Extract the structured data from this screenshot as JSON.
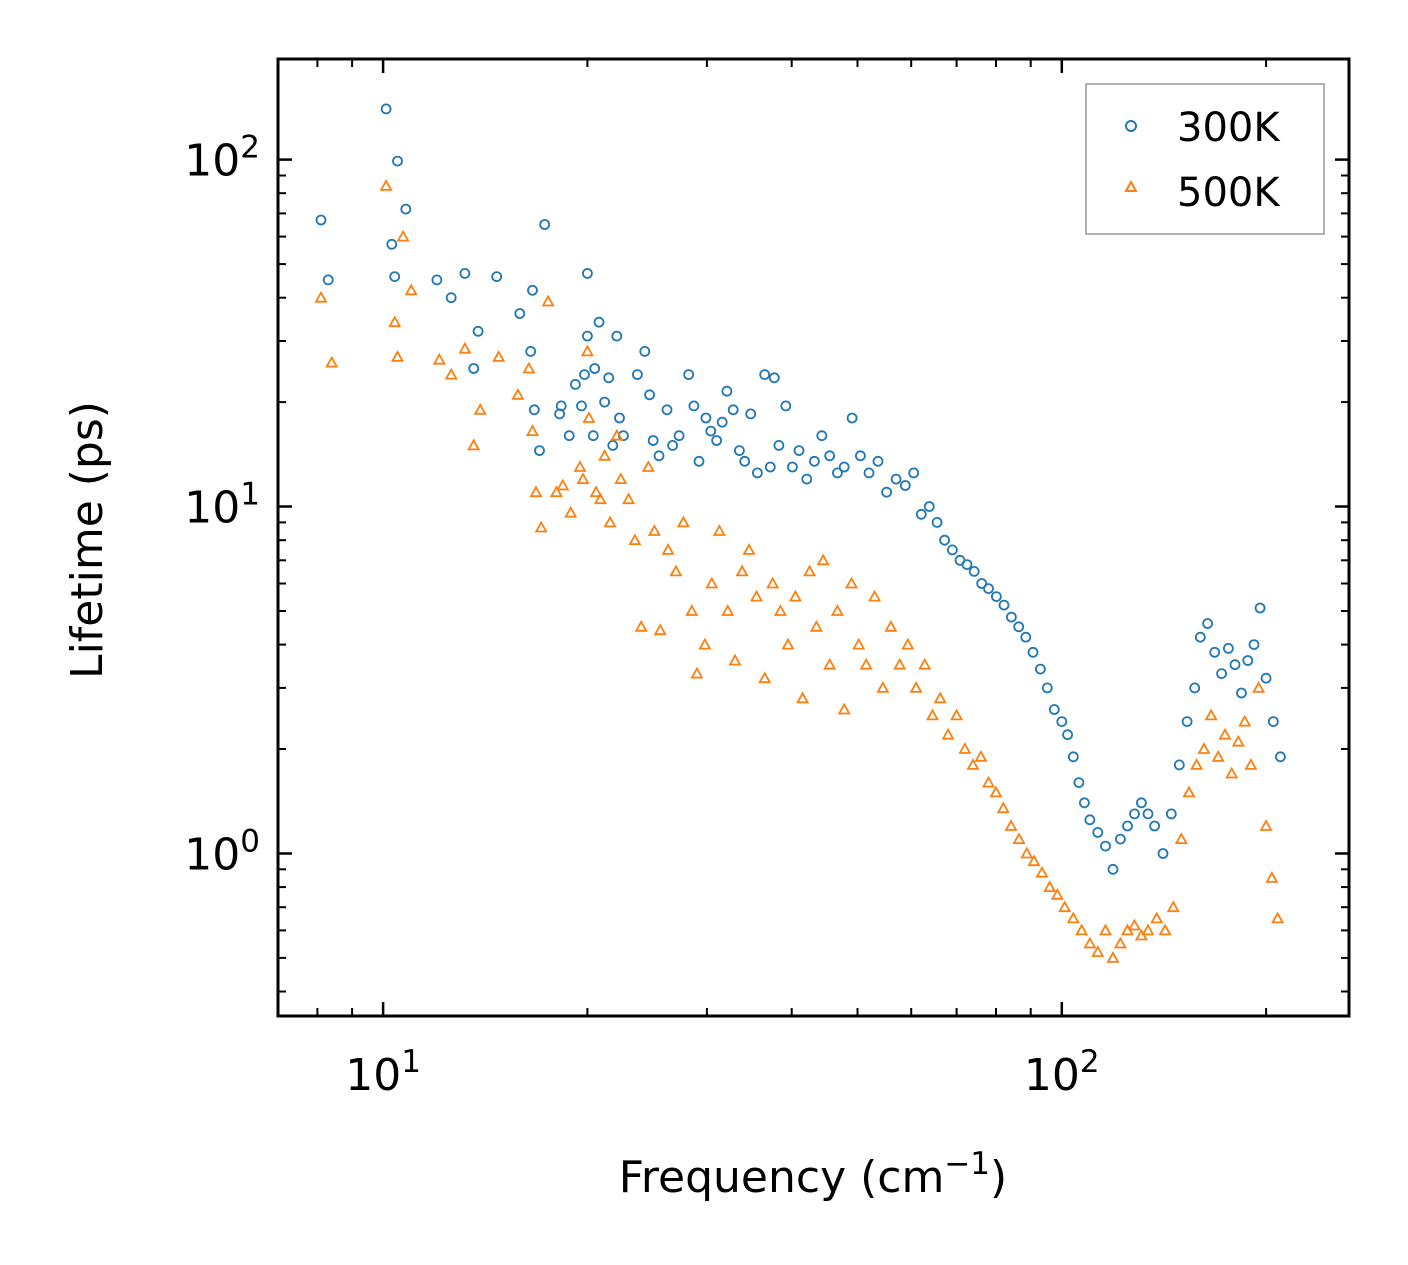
{
  "chart_data": {
    "type": "scatter",
    "title": "",
    "xlabel": "Frequency (cm",
    "xlabel_sup": "−1",
    "xlabel_suffix": ")",
    "ylabel": "Lifetime (ps)",
    "xscale": "log",
    "yscale": "log",
    "xlim": [
      7.0,
      265
    ],
    "ylim": [
      0.34,
      195
    ],
    "legend_position": "top-right",
    "x_ticks": [
      {
        "base": "10",
        "exp": "1"
      },
      {
        "base": "10",
        "exp": "2"
      }
    ],
    "y_ticks": [
      {
        "base": "10",
        "exp": "0"
      },
      {
        "base": "10",
        "exp": "1"
      },
      {
        "base": "10",
        "exp": "2"
      }
    ],
    "series": [
      {
        "name": "300K",
        "marker": "circle",
        "color": "#1f77b4",
        "points": [
          [
            8.1,
            67
          ],
          [
            8.3,
            45
          ],
          [
            10.1,
            140
          ],
          [
            10.3,
            57
          ],
          [
            10.4,
            46
          ],
          [
            10.5,
            99
          ],
          [
            10.8,
            72
          ],
          [
            12,
            45
          ],
          [
            12.6,
            40
          ],
          [
            13.2,
            47
          ],
          [
            13.6,
            25
          ],
          [
            13.8,
            32
          ],
          [
            14.7,
            46
          ],
          [
            15.9,
            36
          ],
          [
            16.5,
            28
          ],
          [
            16.6,
            42
          ],
          [
            16.7,
            19
          ],
          [
            17.0,
            14.5
          ],
          [
            17.3,
            65
          ],
          [
            18.2,
            18.5
          ],
          [
            18.3,
            19.5
          ],
          [
            18.8,
            16
          ],
          [
            19.2,
            22.5
          ],
          [
            19.6,
            19.5
          ],
          [
            19.8,
            24
          ],
          [
            20.0,
            47
          ],
          [
            20.0,
            31
          ],
          [
            20.4,
            16
          ],
          [
            20.5,
            25
          ],
          [
            20.8,
            34
          ],
          [
            21.2,
            20
          ],
          [
            21.5,
            23.5
          ],
          [
            21.8,
            15
          ],
          [
            22.1,
            31
          ],
          [
            22.3,
            18
          ],
          [
            22.6,
            16
          ],
          [
            23.7,
            24
          ],
          [
            24.3,
            28
          ],
          [
            24.7,
            21
          ],
          [
            25.0,
            15.5
          ],
          [
            25.5,
            14
          ],
          [
            26.2,
            19
          ],
          [
            26.7,
            15
          ],
          [
            27.3,
            16
          ],
          [
            28.2,
            24
          ],
          [
            28.7,
            19.5
          ],
          [
            29.2,
            13.5
          ],
          [
            29.9,
            18
          ],
          [
            30.4,
            16.5
          ],
          [
            31.0,
            15.5
          ],
          [
            31.6,
            17.5
          ],
          [
            32.1,
            21.5
          ],
          [
            32.8,
            19
          ],
          [
            33.5,
            14.5
          ],
          [
            34.1,
            13.5
          ],
          [
            34.8,
            18.5
          ],
          [
            35.6,
            12.5
          ],
          [
            36.5,
            24
          ],
          [
            37.2,
            13
          ],
          [
            37.7,
            23.5
          ],
          [
            38.3,
            15
          ],
          [
            39.2,
            19.5
          ],
          [
            40.1,
            13
          ],
          [
            41.0,
            14.5
          ],
          [
            42.1,
            12
          ],
          [
            43.2,
            13.5
          ],
          [
            44.3,
            16
          ],
          [
            45.5,
            14
          ],
          [
            46.7,
            12.5
          ],
          [
            47.8,
            13
          ],
          [
            49.1,
            18
          ],
          [
            50.5,
            14
          ],
          [
            52.0,
            12.5
          ],
          [
            53.6,
            13.5
          ],
          [
            55.2,
            11
          ],
          [
            57.0,
            12
          ],
          [
            58.8,
            11.5
          ],
          [
            60.5,
            12.5
          ],
          [
            62.1,
            9.5
          ],
          [
            63.8,
            10
          ],
          [
            65.5,
            9
          ],
          [
            67.2,
            8
          ],
          [
            69.0,
            7.5
          ],
          [
            70.8,
            7
          ],
          [
            72.5,
            6.8
          ],
          [
            74.3,
            6.5
          ],
          [
            76.2,
            6
          ],
          [
            78.0,
            5.8
          ],
          [
            80.1,
            5.5
          ],
          [
            82.2,
            5.2
          ],
          [
            84.3,
            4.8
          ],
          [
            86.4,
            4.5
          ],
          [
            88.5,
            4.2
          ],
          [
            90.7,
            3.8
          ],
          [
            93.0,
            3.4
          ],
          [
            95.2,
            3.0
          ],
          [
            97.5,
            2.6
          ],
          [
            100,
            2.4
          ],
          [
            102,
            2.2
          ],
          [
            104,
            1.9
          ],
          [
            106,
            1.6
          ],
          [
            108,
            1.4
          ],
          [
            110,
            1.25
          ],
          [
            113,
            1.15
          ],
          [
            116,
            1.05
          ],
          [
            119,
            0.9
          ],
          [
            122,
            1.1
          ],
          [
            125,
            1.2
          ],
          [
            128,
            1.3
          ],
          [
            131,
            1.4
          ],
          [
            134,
            1.3
          ],
          [
            137,
            1.2
          ],
          [
            141,
            1.0
          ],
          [
            145,
            1.3
          ],
          [
            149,
            1.8
          ],
          [
            153,
            2.4
          ],
          [
            157,
            3.0
          ],
          [
            160,
            4.2
          ],
          [
            164,
            4.6
          ],
          [
            168,
            3.8
          ],
          [
            172,
            3.3
          ],
          [
            176,
            3.9
          ],
          [
            180,
            3.5
          ],
          [
            184,
            2.9
          ],
          [
            188,
            3.6
          ],
          [
            192,
            4.0
          ],
          [
            196,
            5.1
          ],
          [
            200,
            3.2
          ],
          [
            205,
            2.4
          ],
          [
            210,
            1.9
          ]
        ]
      },
      {
        "name": "500K",
        "marker": "triangle",
        "color": "#ff7f0e",
        "points": [
          [
            8.1,
            40
          ],
          [
            8.4,
            26
          ],
          [
            10.1,
            84
          ],
          [
            10.4,
            34
          ],
          [
            10.5,
            27
          ],
          [
            10.7,
            60
          ],
          [
            11.0,
            42
          ],
          [
            12.1,
            26.5
          ],
          [
            12.6,
            24
          ],
          [
            13.2,
            28.5
          ],
          [
            13.6,
            15
          ],
          [
            13.9,
            19
          ],
          [
            14.8,
            27
          ],
          [
            15.8,
            21
          ],
          [
            16.4,
            25
          ],
          [
            16.6,
            16.5
          ],
          [
            16.8,
            11
          ],
          [
            17.1,
            8.7
          ],
          [
            17.5,
            39
          ],
          [
            18.0,
            11
          ],
          [
            18.4,
            11.5
          ],
          [
            18.9,
            9.6
          ],
          [
            19.5,
            13
          ],
          [
            19.7,
            12
          ],
          [
            20.0,
            28
          ],
          [
            20.1,
            18
          ],
          [
            20.6,
            11
          ],
          [
            20.9,
            10.5
          ],
          [
            21.2,
            14
          ],
          [
            21.6,
            9
          ],
          [
            22.1,
            16
          ],
          [
            22.4,
            12
          ],
          [
            23.0,
            10.5
          ],
          [
            23.5,
            8
          ],
          [
            24.0,
            4.5
          ],
          [
            24.6,
            13
          ],
          [
            25.1,
            8.5
          ],
          [
            25.6,
            4.4
          ],
          [
            26.3,
            7.5
          ],
          [
            27.0,
            6.5
          ],
          [
            27.7,
            9
          ],
          [
            28.5,
            5
          ],
          [
            29.0,
            3.3
          ],
          [
            29.8,
            4.0
          ],
          [
            30.5,
            6
          ],
          [
            31.3,
            8.5
          ],
          [
            32.2,
            5
          ],
          [
            33.0,
            3.6
          ],
          [
            33.8,
            6.5
          ],
          [
            34.6,
            7.5
          ],
          [
            35.5,
            5.5
          ],
          [
            36.5,
            3.2
          ],
          [
            37.5,
            6
          ],
          [
            38.5,
            5
          ],
          [
            39.5,
            4
          ],
          [
            40.5,
            5.5
          ],
          [
            41.5,
            2.8
          ],
          [
            42.5,
            6.5
          ],
          [
            43.5,
            4.5
          ],
          [
            44.5,
            7
          ],
          [
            45.5,
            3.5
          ],
          [
            46.7,
            5
          ],
          [
            47.8,
            2.6
          ],
          [
            49.0,
            6
          ],
          [
            50.2,
            4
          ],
          [
            51.5,
            3.5
          ],
          [
            53.0,
            5.5
          ],
          [
            54.5,
            3
          ],
          [
            56.0,
            4.5
          ],
          [
            57.7,
            3.5
          ],
          [
            59.3,
            4
          ],
          [
            61.0,
            3.0
          ],
          [
            62.8,
            3.5
          ],
          [
            64.5,
            2.5
          ],
          [
            66.2,
            2.8
          ],
          [
            68.0,
            2.2
          ],
          [
            70.0,
            2.5
          ],
          [
            72.0,
            2.0
          ],
          [
            74.0,
            1.8
          ],
          [
            76.0,
            1.9
          ],
          [
            78.0,
            1.6
          ],
          [
            80.0,
            1.5
          ],
          [
            82.0,
            1.35
          ],
          [
            84.2,
            1.2
          ],
          [
            86.5,
            1.1
          ],
          [
            88.8,
            1.0
          ],
          [
            91.0,
            0.95
          ],
          [
            93.5,
            0.88
          ],
          [
            96.0,
            0.8
          ],
          [
            98.5,
            0.76
          ],
          [
            101,
            0.7
          ],
          [
            104,
            0.65
          ],
          [
            107,
            0.6
          ],
          [
            110,
            0.55
          ],
          [
            113,
            0.52
          ],
          [
            116,
            0.6
          ],
          [
            119,
            0.5
          ],
          [
            122,
            0.55
          ],
          [
            125,
            0.6
          ],
          [
            128,
            0.62
          ],
          [
            131,
            0.58
          ],
          [
            134,
            0.6
          ],
          [
            138,
            0.65
          ],
          [
            142,
            0.6
          ],
          [
            146,
            0.7
          ],
          [
            150,
            1.1
          ],
          [
            154,
            1.5
          ],
          [
            158,
            1.8
          ],
          [
            162,
            2.0
          ],
          [
            166,
            2.5
          ],
          [
            170,
            1.9
          ],
          [
            174,
            2.2
          ],
          [
            178,
            1.7
          ],
          [
            182,
            2.1
          ],
          [
            186,
            2.4
          ],
          [
            190,
            1.8
          ],
          [
            195,
            3.0
          ],
          [
            200,
            1.2
          ],
          [
            204,
            0.85
          ],
          [
            208,
            0.65
          ]
        ]
      }
    ]
  }
}
